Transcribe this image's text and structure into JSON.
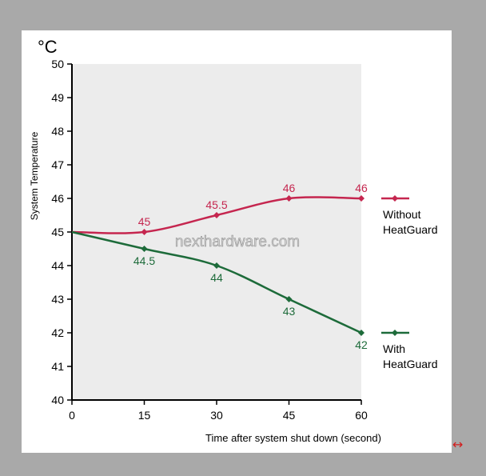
{
  "chart_data": {
    "type": "line",
    "unit_label": "°C",
    "ylabel": "System Temperature",
    "xlabel": "Time after system shut down (second)",
    "xlim": [
      0,
      60
    ],
    "ylim": [
      40,
      50
    ],
    "x_ticks": [
      0,
      15,
      30,
      45,
      60
    ],
    "y_ticks": [
      40,
      41,
      42,
      43,
      44,
      45,
      46,
      47,
      48,
      49,
      50
    ],
    "grid": false,
    "legend_position": "right",
    "watermark": "nexthardware.com",
    "series": [
      {
        "name": "Without HeatGuard",
        "legend_lines": [
          "Without",
          "HeatGuard"
        ],
        "color": "#c5264f",
        "x": [
          0,
          15,
          30,
          45,
          60
        ],
        "y": [
          45,
          45,
          45.5,
          46,
          46
        ],
        "point_labels": [
          "",
          "45",
          "45.5",
          "46",
          "46"
        ]
      },
      {
        "name": "With HeatGuard",
        "legend_lines": [
          "With",
          "HeatGuard"
        ],
        "color": "#1d6b3a",
        "x": [
          0,
          15,
          30,
          45,
          60
        ],
        "y": [
          45,
          44.5,
          44,
          43,
          42
        ],
        "point_labels": [
          "",
          "44.5",
          "44",
          "43",
          "42"
        ]
      }
    ]
  },
  "icons": {
    "expand": "↔"
  },
  "colors": {
    "background": "#a9a9a9",
    "plot_area": "#ececec",
    "axis": "#000000"
  }
}
